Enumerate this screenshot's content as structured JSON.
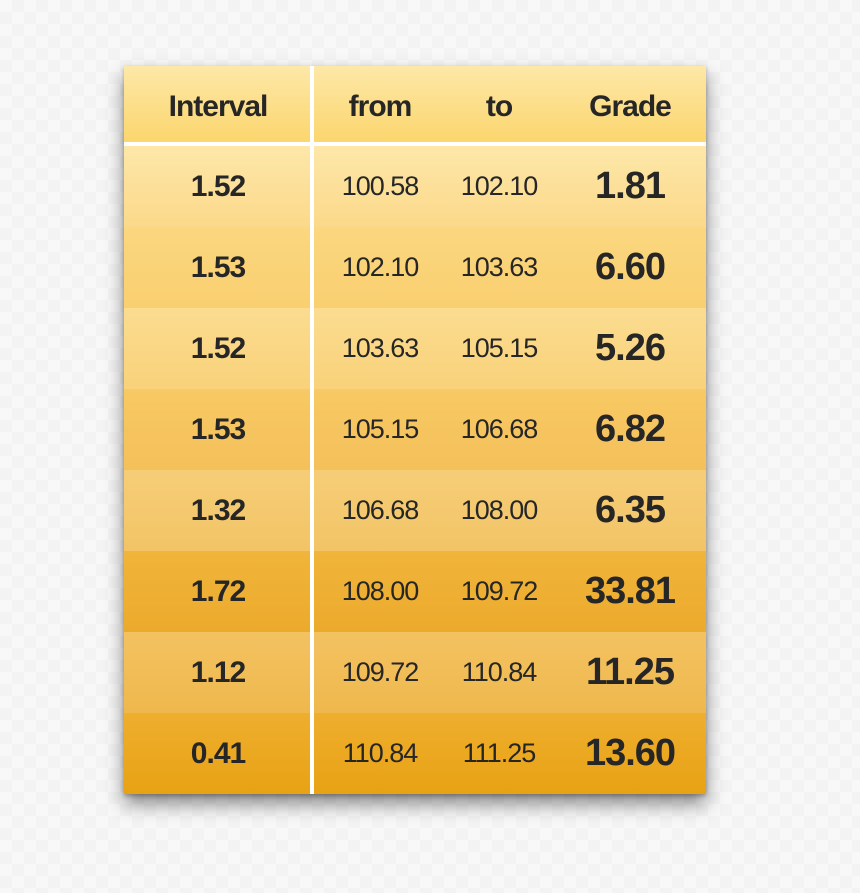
{
  "table": {
    "headers": {
      "interval": "Interval",
      "from": "from",
      "to": "to",
      "grade": "Grade"
    },
    "rows": [
      {
        "interval": "1.52",
        "from": "100.58",
        "to": "102.10",
        "grade": "1.81",
        "color_top": "#fde7a9",
        "color_bottom": "#fbd98a"
      },
      {
        "interval": "1.53",
        "from": "102.10",
        "to": "103.63",
        "grade": "6.60",
        "color_top": "#fbd77f",
        "color_bottom": "#f9cf70"
      },
      {
        "interval": "1.52",
        "from": "103.63",
        "to": "105.15",
        "grade": "5.26",
        "color_top": "#fbdc90",
        "color_bottom": "#f9d27a"
      },
      {
        "interval": "1.53",
        "from": "105.15",
        "to": "106.68",
        "grade": "6.82",
        "color_top": "#f8c964",
        "color_bottom": "#f4c05a"
      },
      {
        "interval": "1.32",
        "from": "106.68",
        "to": "108.00",
        "grade": "6.35",
        "color_top": "#f6cd77",
        "color_bottom": "#f2c466"
      },
      {
        "interval": "1.72",
        "from": "108.00",
        "to": "109.72",
        "grade": "33.81",
        "color_top": "#f0b53b",
        "color_bottom": "#ecaa2c"
      },
      {
        "interval": "1.12",
        "from": "109.72",
        "to": "110.84",
        "grade": "11.25",
        "color_top": "#f3c261",
        "color_bottom": "#efb84d"
      },
      {
        "interval": "0.41",
        "from": "110.84",
        "to": "111.25",
        "grade": "13.60",
        "color_top": "#eeae2e",
        "color_bottom": "#e8a214"
      }
    ]
  }
}
